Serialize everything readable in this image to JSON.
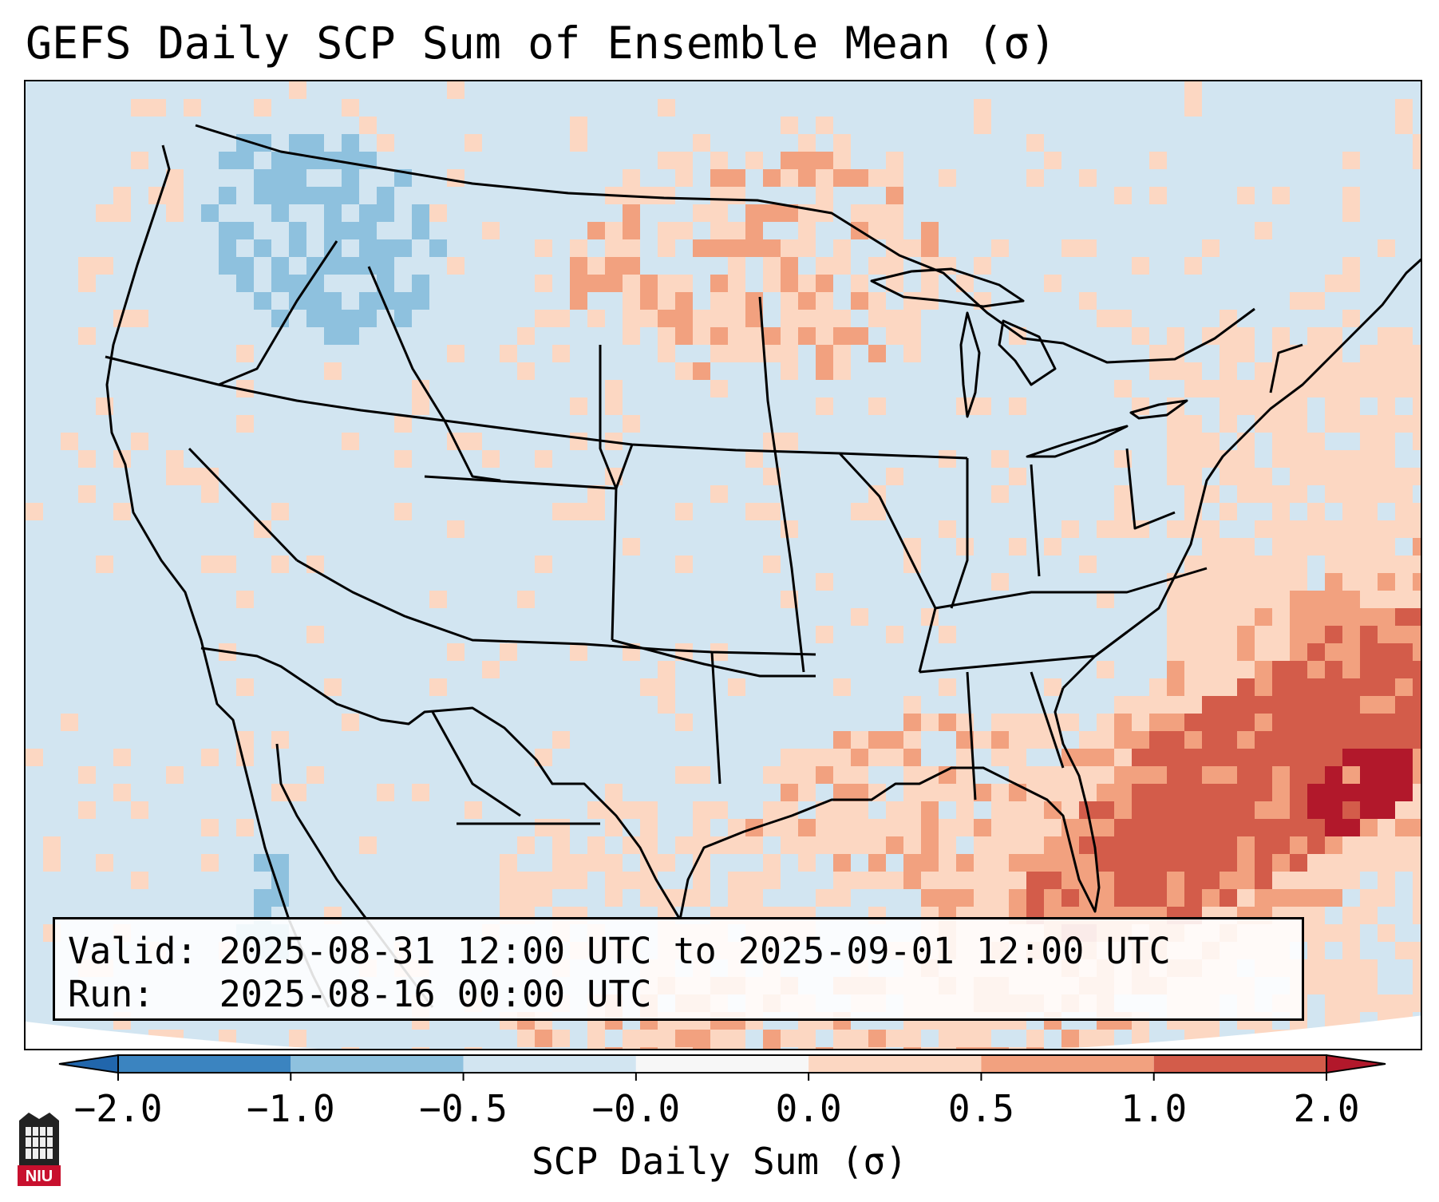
{
  "title": "GEFS Daily SCP Sum of Ensemble Mean (σ)",
  "info": {
    "valid_label": "Valid:",
    "valid_text": "2025-08-31 12:00 UTC to 2025-09-01 12:00 UTC",
    "run_label": "Run:",
    "run_text": "2025-08-16 00:00 UTC"
  },
  "colorbar": {
    "label": "SCP Daily Sum (σ)",
    "ticks": [
      "−2.0",
      "−1.0",
      "−0.5",
      "−0.0",
      "0.0",
      "0.5",
      "1.0",
      "2.0"
    ],
    "bin_colors": [
      "#3b84c0",
      "#8ec1de",
      "#d2e5f1",
      "#f7f7f7",
      "#fcd7c2",
      "#f2a17f",
      "#d35c4a"
    ],
    "under_color": "#2166ac",
    "over_color": "#b2182b"
  },
  "logo": {
    "text": "NIU"
  },
  "palette": {
    "ocean": "#d2e5f1",
    "neutral_neg": "#d2e5f1",
    "light_pos": "#fcd7c2",
    "mid_pos": "#f2a17f",
    "high_pos": "#d35c4a",
    "max_pos": "#b2182b",
    "light_neg": "#8ec1de",
    "outside": "#ffffff"
  }
}
